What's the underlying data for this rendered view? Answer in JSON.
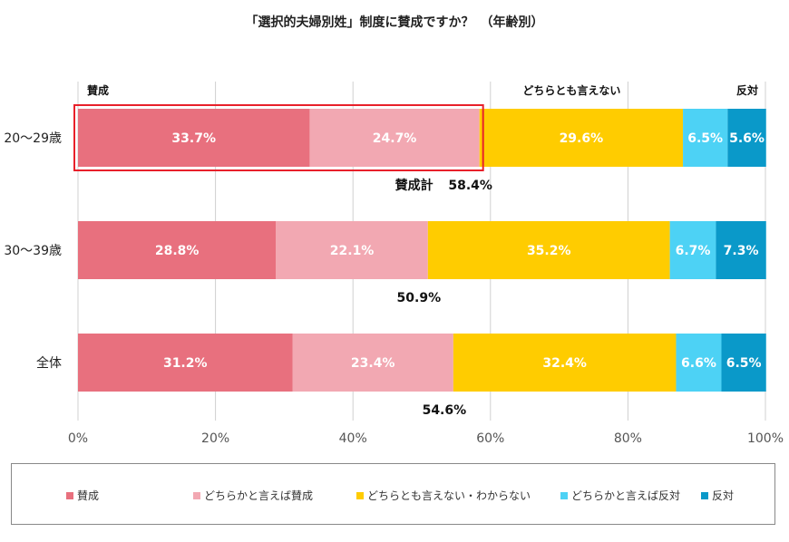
{
  "chart_data": {
    "type": "bar",
    "orientation": "horizontal-stacked",
    "title": "「選択的夫婦別姓」制度に賛成ですか？　（年齢別）",
    "categories": [
      "20〜29歳",
      "30〜39歳",
      "全体"
    ],
    "series": [
      {
        "name": "賛成",
        "values": [
          33.7,
          28.8,
          31.2
        ],
        "color": "#e8707e",
        "labels": [
          "33.7%",
          "28.8%",
          "31.2%"
        ]
      },
      {
        "name": "どちらかと言えば賛成",
        "values": [
          24.7,
          22.1,
          23.4
        ],
        "color": "#f2a8b2",
        "labels": [
          "24.7%",
          "22.1%",
          "23.4%"
        ]
      },
      {
        "name": "どちらとも言えない・わからない",
        "values": [
          29.6,
          35.2,
          32.4
        ],
        "color": "#ffcc00",
        "labels": [
          "29.6%",
          "35.2%",
          "32.4%"
        ]
      },
      {
        "name": "どちらかと言えば反対",
        "values": [
          6.5,
          6.7,
          6.6
        ],
        "color": "#4dd2f5",
        "labels": [
          "6.5%",
          "6.7%",
          "6.6%"
        ]
      },
      {
        "name": "反対",
        "values": [
          5.6,
          7.3,
          6.5
        ],
        "color": "#0a99c9",
        "labels": [
          "5.6%",
          "7.3%",
          "6.5%"
        ]
      }
    ],
    "totals": [
      {
        "prefix": "賛成計",
        "label": "58.4%",
        "value": 58.4
      },
      {
        "prefix": "",
        "label": "50.9%",
        "value": 50.9
      },
      {
        "prefix": "",
        "label": "54.6%",
        "value": 54.6
      }
    ],
    "column_headers": [
      {
        "label": "賛成",
        "at": 0,
        "align": "start"
      },
      {
        "label": "どちらとも言えない",
        "at": 80,
        "align": "end"
      },
      {
        "label": "反対",
        "at": 100,
        "align": "end"
      }
    ],
    "xlim": [
      0,
      100
    ],
    "xticks": [
      {
        "value": 0,
        "label": "0%"
      },
      {
        "value": 20,
        "label": "20%"
      },
      {
        "value": 40,
        "label": "40%"
      },
      {
        "value": 60,
        "label": "60%"
      },
      {
        "value": 80,
        "label": "80%"
      },
      {
        "value": 100,
        "label": "100%"
      }
    ],
    "grid": true,
    "highlight": {
      "category_index": 0,
      "series_indices": [
        0,
        1
      ],
      "color": "#e8202a"
    },
    "legend": {
      "placement": "bottom",
      "framed": true
    }
  }
}
